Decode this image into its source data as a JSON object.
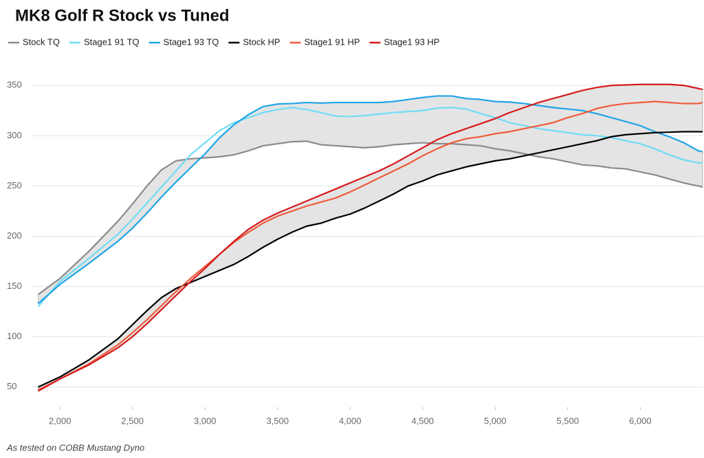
{
  "chart_data": {
    "type": "line",
    "title": "MK8 Golf R Stock vs Tuned",
    "footnote": "As tested on COBB Mustang Dyno",
    "x": [
      1850,
      2000,
      2200,
      2400,
      2500,
      2600,
      2700,
      2800,
      2900,
      3000,
      3100,
      3200,
      3300,
      3400,
      3500,
      3600,
      3700,
      3800,
      3900,
      4000,
      4100,
      4200,
      4300,
      4400,
      4500,
      4600,
      4700,
      4800,
      4900,
      5000,
      5100,
      5200,
      5300,
      5400,
      5500,
      5600,
      5700,
      5800,
      5900,
      6000,
      6100,
      6200,
      6300,
      6400,
      6430
    ],
    "series": [
      {
        "name": "Stock TQ",
        "color": "#8a8a8a",
        "values": [
          142,
          158,
          185,
          215,
          232,
          250,
          266,
          275,
          277,
          278,
          279,
          281,
          285,
          290,
          292,
          294,
          294.5,
          291,
          290,
          289,
          288,
          289,
          291,
          292,
          293,
          292,
          292,
          291,
          290,
          287,
          285,
          282,
          279,
          277,
          274,
          271,
          270,
          268,
          267,
          264,
          261,
          257,
          253,
          250,
          249
        ]
      },
      {
        "name": "Stage1 91 TQ",
        "color": "#6fdcf5",
        "values": [
          130,
          155,
          178,
          202,
          217,
          233,
          249,
          265,
          281,
          293,
          305,
          313,
          318,
          323,
          326,
          328,
          326,
          323,
          319.5,
          319,
          320,
          321.5,
          323,
          324,
          325,
          327.5,
          328,
          326.5,
          322,
          318,
          313,
          310,
          307,
          305,
          303,
          301,
          300,
          298,
          295,
          292,
          287,
          281,
          276,
          273,
          273
        ]
      },
      {
        "name": "Stage1 93 TQ",
        "color": "#1ea5e6",
        "values": [
          133,
          152,
          173,
          195,
          208,
          223,
          239,
          254,
          268,
          282,
          298,
          311,
          321,
          329,
          331.5,
          332,
          333,
          332.5,
          333,
          333,
          333,
          333,
          334,
          336,
          338,
          339.5,
          339.5,
          337,
          336,
          334,
          333.5,
          332,
          330,
          328,
          326.5,
          325,
          322,
          318,
          314,
          310,
          304,
          299,
          293,
          285,
          284
        ]
      },
      {
        "name": "Stock HP",
        "color": "#000000",
        "values": [
          50,
          60,
          77,
          98,
          112,
          126,
          139,
          148,
          154,
          160,
          166,
          172,
          180,
          189,
          197,
          204,
          210,
          213,
          218,
          222,
          228,
          235,
          242,
          250,
          255,
          261,
          265,
          269,
          272,
          275,
          277,
          280,
          283,
          286,
          289,
          292,
          295,
          299,
          301,
          302,
          303,
          303.5,
          304,
          304,
          304
        ]
      },
      {
        "name": "Stage1 91 HP",
        "color": "#f05a3a",
        "values": [
          47,
          58,
          73,
          92,
          104,
          117,
          131,
          145,
          158,
          170,
          182,
          194,
          204,
          213,
          220,
          225,
          230,
          234,
          238,
          244,
          251,
          258,
          265,
          272,
          280,
          287,
          293,
          297,
          299,
          302,
          304,
          307,
          310,
          313,
          318,
          322,
          327,
          330,
          332,
          333,
          334,
          333,
          332,
          332,
          333
        ]
      },
      {
        "name": "Stage1 93 HP",
        "color": "#d7191c",
        "values": [
          46,
          58,
          72,
          89,
          100,
          113,
          127,
          141,
          155,
          168,
          182,
          195,
          207,
          216,
          223,
          229,
          235,
          241,
          247,
          253,
          259,
          265,
          272,
          280,
          288,
          296,
          302,
          307,
          312,
          317,
          323,
          328,
          333,
          337,
          341,
          345,
          348,
          350,
          350.5,
          351,
          351,
          351,
          350,
          347,
          346
        ]
      }
    ],
    "fill_between": [
      {
        "series": [
          0,
          2
        ],
        "color": "#e4e4e4"
      },
      {
        "series": [
          3,
          5
        ],
        "color": "#e4e4e4"
      }
    ],
    "xlim": [
      1800,
      6430
    ],
    "ylim": [
      30,
      370
    ],
    "xticks": [
      {
        "value": 2000,
        "label": "2,000"
      },
      {
        "value": 2500,
        "label": "2,500"
      },
      {
        "value": 3000,
        "label": "3,000"
      },
      {
        "value": 3500,
        "label": "3,500"
      },
      {
        "value": 4000,
        "label": "4,000"
      },
      {
        "value": 4500,
        "label": "4,500"
      },
      {
        "value": 5000,
        "label": "5,000"
      },
      {
        "value": 5500,
        "label": "5,500"
      },
      {
        "value": 6000,
        "label": "6,000"
      }
    ],
    "yticks": [
      50,
      100,
      150,
      200,
      250,
      300,
      350
    ],
    "grid": true
  }
}
